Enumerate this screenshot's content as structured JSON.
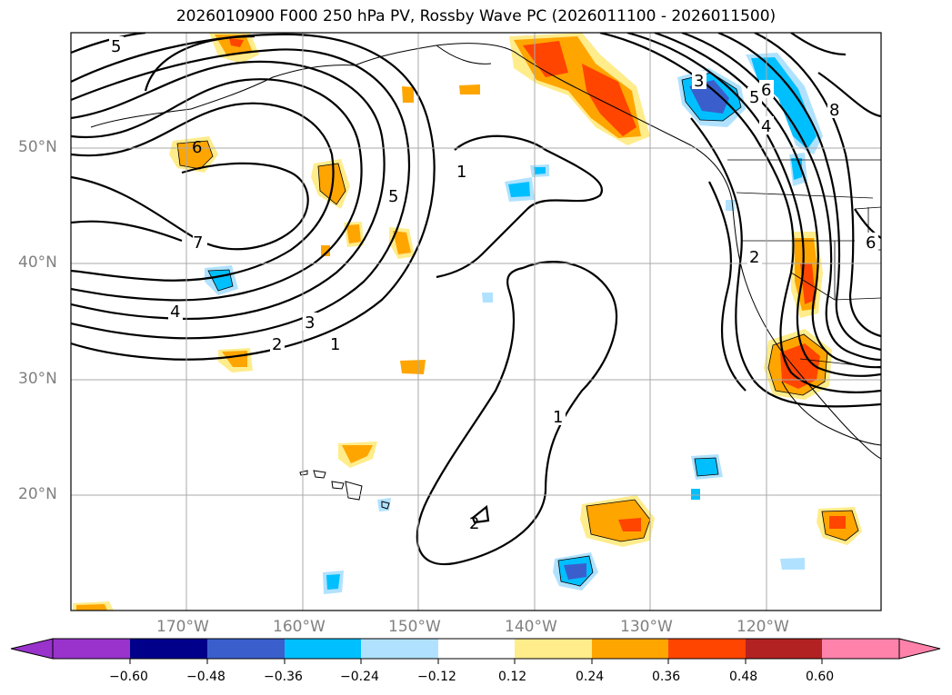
{
  "title": "2026010900 F000 250 hPa PV, Rossby Wave PC (2026011100 - 2026011500)",
  "lat_labels": [
    "50°N",
    "40°N",
    "30°N",
    "20°N"
  ],
  "lon_labels": [
    "170°W",
    "160°W",
    "150°W",
    "140°W",
    "130°W",
    "120°W"
  ],
  "contour_labels": [
    "5",
    "6",
    "7",
    "4",
    "3",
    "2",
    "1",
    "5",
    "1",
    "1",
    "2",
    "3",
    "6",
    "5",
    "4",
    "8",
    "2",
    "6"
  ],
  "colorbar": {
    "ticks": [
      "−0.60",
      "−0.48",
      "−0.36",
      "−0.24",
      "−0.12",
      "0.12",
      "0.24",
      "0.36",
      "0.48",
      "0.60"
    ],
    "colors": [
      "#9933cc",
      "#00008b",
      "#3a5fcd",
      "#00bfff",
      "#b0e2ff",
      "#ffffff",
      "#ffec8b",
      "#ffa500",
      "#ff4500",
      "#b22222",
      "#ff82ab"
    ]
  }
}
